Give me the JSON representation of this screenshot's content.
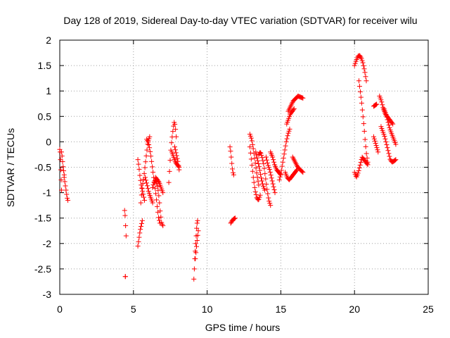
{
  "chart_data": {
    "type": "scatter",
    "title": "Day 128 of 2019, Sidereal Day-to-day VTEC variation (SDTVAR) for receiver wilu",
    "xlabel": "GPS time / hours",
    "ylabel": "SDTVAR / TECUs",
    "xlim": [
      0,
      25
    ],
    "ylim": [
      -3,
      2
    ],
    "xticks": [
      0,
      5,
      10,
      15,
      20,
      25
    ],
    "xtick_labels": [
      "0",
      "5",
      "10",
      "15",
      "20",
      "25"
    ],
    "yticks": [
      2,
      1.5,
      1,
      0.5,
      0,
      -0.5,
      -1,
      -1.5,
      -2,
      -2.5,
      -3
    ],
    "ytick_labels": [
      "2",
      "1.5",
      "1",
      "0.5",
      "0",
      "-0.5",
      "-1",
      "-1.5",
      "-2",
      "-2.5",
      "-3"
    ],
    "grid": true,
    "marker": "+",
    "color": "#ff0000",
    "series": [
      {
        "name": "SDTVAR",
        "segments": [
          {
            "x0": 0.0,
            "x1": 0.12,
            "y": [
              -0.15,
              -0.2,
              -0.35,
              -0.55,
              -0.75,
              -0.95
            ]
          },
          {
            "x0": 0.12,
            "x1": 0.3,
            "y": [
              -0.2,
              -0.3,
              -0.45,
              -0.55,
              -0.65
            ]
          },
          {
            "x0": 0.3,
            "x1": 0.55,
            "y": [
              -0.7,
              -0.8,
              -0.9,
              -1.0,
              -1.1,
              -1.15
            ]
          },
          {
            "x0": 4.4,
            "x1": 4.5,
            "y": [
              -1.35,
              -1.45,
              -1.65,
              -1.85
            ]
          },
          {
            "x0": 4.45,
            "x1": 4.45,
            "y": [
              -2.65
            ]
          },
          {
            "x0": 5.3,
            "x1": 5.6,
            "y": [
              -2.05,
              -1.9,
              -1.75,
              -1.65,
              -1.55
            ]
          },
          {
            "x0": 5.3,
            "x1": 5.75,
            "y": [
              -0.35,
              -0.5,
              -0.7,
              -0.85,
              -0.95,
              -1.05,
              -1.15
            ]
          },
          {
            "x0": 5.5,
            "x1": 6.1,
            "y": [
              -1.2,
              -1.0,
              -0.85,
              -0.75,
              -0.6,
              -0.45,
              -0.3,
              -0.15,
              0.0,
              0.05,
              0.1
            ]
          },
          {
            "x0": 5.8,
            "x1": 6.3,
            "y": [
              -0.7,
              -0.85,
              -1.0,
              -1.1,
              -1.2
            ]
          },
          {
            "x0": 5.9,
            "x1": 6.8,
            "y": [
              0.05,
              0.0,
              -0.1,
              -0.25,
              -0.45,
              -0.65,
              -0.85,
              -1.05,
              -1.3,
              -1.5,
              -1.6
            ]
          },
          {
            "x0": 6.3,
            "x1": 7.0,
            "y": [
              -0.9,
              -0.8,
              -0.75,
              -0.8,
              -0.9,
              -1.1,
              -1.4,
              -1.6,
              -1.65
            ]
          },
          {
            "x0": 6.5,
            "x1": 7.0,
            "y": [
              -0.7,
              -0.75,
              -0.8,
              -0.9,
              -1.0
            ]
          },
          {
            "x0": 7.4,
            "x1": 7.9,
            "y": [
              -0.8,
              -0.5,
              -0.2,
              0.0,
              0.15,
              0.3,
              0.4,
              0.3,
              0.1
            ]
          },
          {
            "x0": 7.6,
            "x1": 8.1,
            "y": [
              -0.2,
              -0.3,
              -0.4,
              -0.45,
              -0.5
            ]
          },
          {
            "x0": 7.8,
            "x1": 8.1,
            "y": [
              -0.1,
              -0.2,
              -0.3,
              -0.4,
              -0.55
            ]
          },
          {
            "x0": 9.1,
            "x1": 9.35,
            "y": [
              -2.7,
              -2.5,
              -2.3,
              -2.15,
              -2.0,
              -1.85,
              -1.7,
              -1.6,
              -1.55
            ]
          },
          {
            "x0": 9.2,
            "x1": 9.4,
            "y": [
              -2.3,
              -2.1,
              -1.9,
              -1.75
            ]
          },
          {
            "x0": 11.6,
            "x1": 11.9,
            "y": [
              -1.6,
              -1.55,
              -1.52,
              -1.5
            ]
          },
          {
            "x0": 11.55,
            "x1": 11.8,
            "y": [
              -0.1,
              -0.2,
              -0.35,
              -0.5,
              -0.6,
              -0.65
            ]
          },
          {
            "x0": 12.9,
            "x1": 13.6,
            "y": [
              -0.1,
              -0.4,
              -0.7,
              -0.95,
              -1.1,
              -1.15,
              -1.05
            ]
          },
          {
            "x0": 12.9,
            "x1": 13.5,
            "y": [
              0.15,
              0.05,
              -0.15,
              -0.4,
              -0.65,
              -0.85
            ]
          },
          {
            "x0": 13.3,
            "x1": 13.9,
            "y": [
              -0.2,
              -0.35,
              -0.5,
              -0.7,
              -0.85,
              -0.95
            ]
          },
          {
            "x0": 13.5,
            "x1": 14.3,
            "y": [
              -0.25,
              -0.2,
              -0.3,
              -0.45,
              -0.7,
              -0.95,
              -1.15,
              -1.25
            ]
          },
          {
            "x0": 14.0,
            "x1": 14.6,
            "y": [
              -0.3,
              -0.45,
              -0.55,
              -0.7,
              -0.85,
              -1.0
            ]
          },
          {
            "x0": 14.3,
            "x1": 15.0,
            "y": [
              -0.2,
              -0.3,
              -0.45,
              -0.55,
              -0.6,
              -0.65
            ]
          },
          {
            "x0": 14.9,
            "x1": 15.6,
            "y": [
              -0.75,
              -0.6,
              -0.4,
              -0.2,
              0.0,
              0.15,
              0.25
            ]
          },
          {
            "x0": 15.3,
            "x1": 16.1,
            "y": [
              -0.6,
              -0.7,
              -0.75,
              -0.7,
              -0.65,
              -0.6,
              -0.55
            ]
          },
          {
            "x0": 15.5,
            "x1": 16.5,
            "y": [
              0.6,
              0.7,
              0.8,
              0.85,
              0.9,
              0.88,
              0.86
            ]
          },
          {
            "x0": 15.4,
            "x1": 15.9,
            "y": [
              0.35,
              0.45,
              0.55,
              0.6,
              0.65
            ]
          },
          {
            "x0": 15.8,
            "x1": 16.5,
            "y": [
              -0.3,
              -0.4,
              -0.5,
              -0.55,
              -0.6
            ]
          },
          {
            "x0": 20.0,
            "x1": 20.8,
            "y": [
              1.5,
              1.6,
              1.68,
              1.7,
              1.65,
              1.55,
              1.4,
              1.2
            ]
          },
          {
            "x0": 20.3,
            "x1": 20.9,
            "y": [
              1.2,
              1.0,
              0.8,
              0.55,
              0.3,
              0.0,
              -0.25,
              -0.4
            ]
          },
          {
            "x0": 20.0,
            "x1": 20.9,
            "y": [
              -0.6,
              -0.7,
              -0.6,
              -0.45,
              -0.3,
              -0.35,
              -0.4,
              -0.45
            ]
          },
          {
            "x0": 21.3,
            "x1": 21.5,
            "y": [
              0.7,
              0.72,
              0.74
            ]
          },
          {
            "x0": 21.3,
            "x1": 21.6,
            "y": [
              0.1,
              0.0,
              -0.1,
              -0.2
            ]
          },
          {
            "x0": 21.7,
            "x1": 22.6,
            "y": [
              0.9,
              0.8,
              0.65,
              0.55,
              0.5,
              0.45,
              0.4,
              0.35
            ]
          },
          {
            "x0": 21.8,
            "x1": 22.8,
            "y": [
              0.3,
              0.2,
              0.1,
              -0.05,
              -0.2,
              -0.35,
              -0.4,
              -0.38,
              -0.35
            ]
          },
          {
            "x0": 22.0,
            "x1": 22.8,
            "y": [
              0.65,
              0.55,
              0.4,
              0.25,
              0.15,
              0.05,
              -0.05
            ]
          }
        ]
      }
    ]
  }
}
